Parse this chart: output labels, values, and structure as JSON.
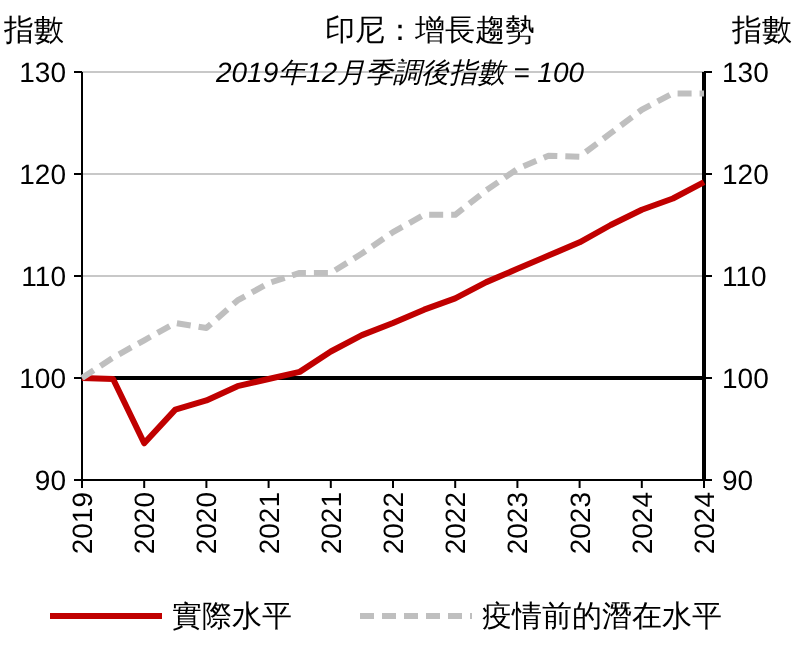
{
  "chart_data": {
    "type": "line",
    "title": "印尼：增長趨勢",
    "subtitle": "2019年12月季調後指數 = 100",
    "ylabel": "指數",
    "y2label": "指數",
    "categories": [
      "2019",
      null,
      "2020",
      null,
      "2020",
      null,
      "2021",
      null,
      "2021",
      null,
      "2022",
      null,
      "2022",
      null,
      "2023",
      null,
      "2023",
      null,
      "2024",
      null,
      "2024"
    ],
    "series": [
      {
        "name": "實際水平",
        "color": "#c00000",
        "line_style": "solid",
        "values": [
          100,
          99.9,
          93.6,
          96.9,
          97.8,
          99.2,
          99.9,
          100.6,
          102.6,
          104.2,
          105.4,
          106.7,
          107.8,
          109.4,
          110.7,
          112.0,
          113.3,
          115.0,
          116.5,
          117.6,
          119.2
        ]
      },
      {
        "name": "疫情前的潛在水平",
        "color": "#bfbfbf",
        "line_style": "dashed",
        "values": [
          100,
          102,
          103.7,
          105.4,
          104.9,
          107.6,
          109.3,
          110.3,
          110.3,
          112.2,
          114.3,
          116.0,
          116.0,
          118.4,
          120.5,
          121.8,
          121.7,
          124.0,
          126.3,
          127.9,
          127.9
        ]
      }
    ],
    "ylim": [
      90,
      130
    ],
    "yticks": [
      90,
      100,
      110,
      120,
      130
    ],
    "y2lim": [
      90,
      130
    ],
    "y2ticks": [
      90,
      100,
      110,
      120,
      130
    ],
    "grid": "y",
    "legend": "bottom",
    "ref_lines": [
      {
        "axis": "y",
        "value": 100,
        "color": "#000000"
      }
    ]
  }
}
